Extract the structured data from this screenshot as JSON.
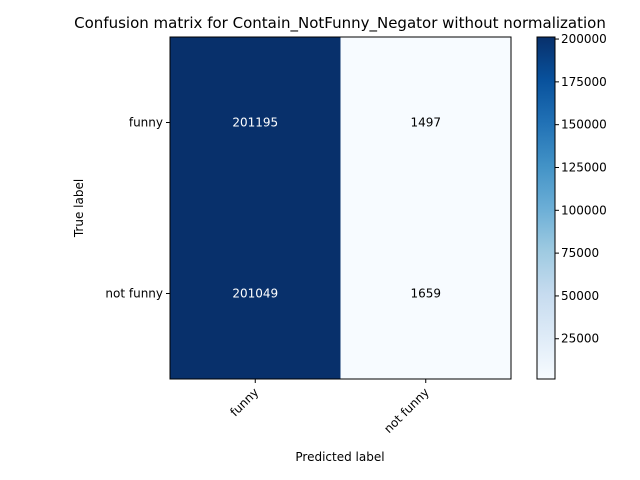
{
  "chart_data": {
    "type": "heatmap",
    "title": "Confusion matrix for Contain_NotFunny_Negator without normalization",
    "xlabel": "Predicted label",
    "ylabel": "True label",
    "x_categories": [
      "funny",
      "not funny"
    ],
    "y_categories": [
      "funny",
      "not funny"
    ],
    "matrix": [
      [
        201195,
        1497
      ],
      [
        201049,
        1659
      ]
    ],
    "colormap": "Blues",
    "colorbar": {
      "min": 1497,
      "max": 201195,
      "ticks": [
        25000,
        50000,
        75000,
        100000,
        125000,
        150000,
        175000,
        200000
      ]
    },
    "colors": {
      "dark": "#08306b",
      "light": "#f7fbff",
      "text_on_dark": "#ffffff",
      "text_on_light": "#000000"
    }
  }
}
